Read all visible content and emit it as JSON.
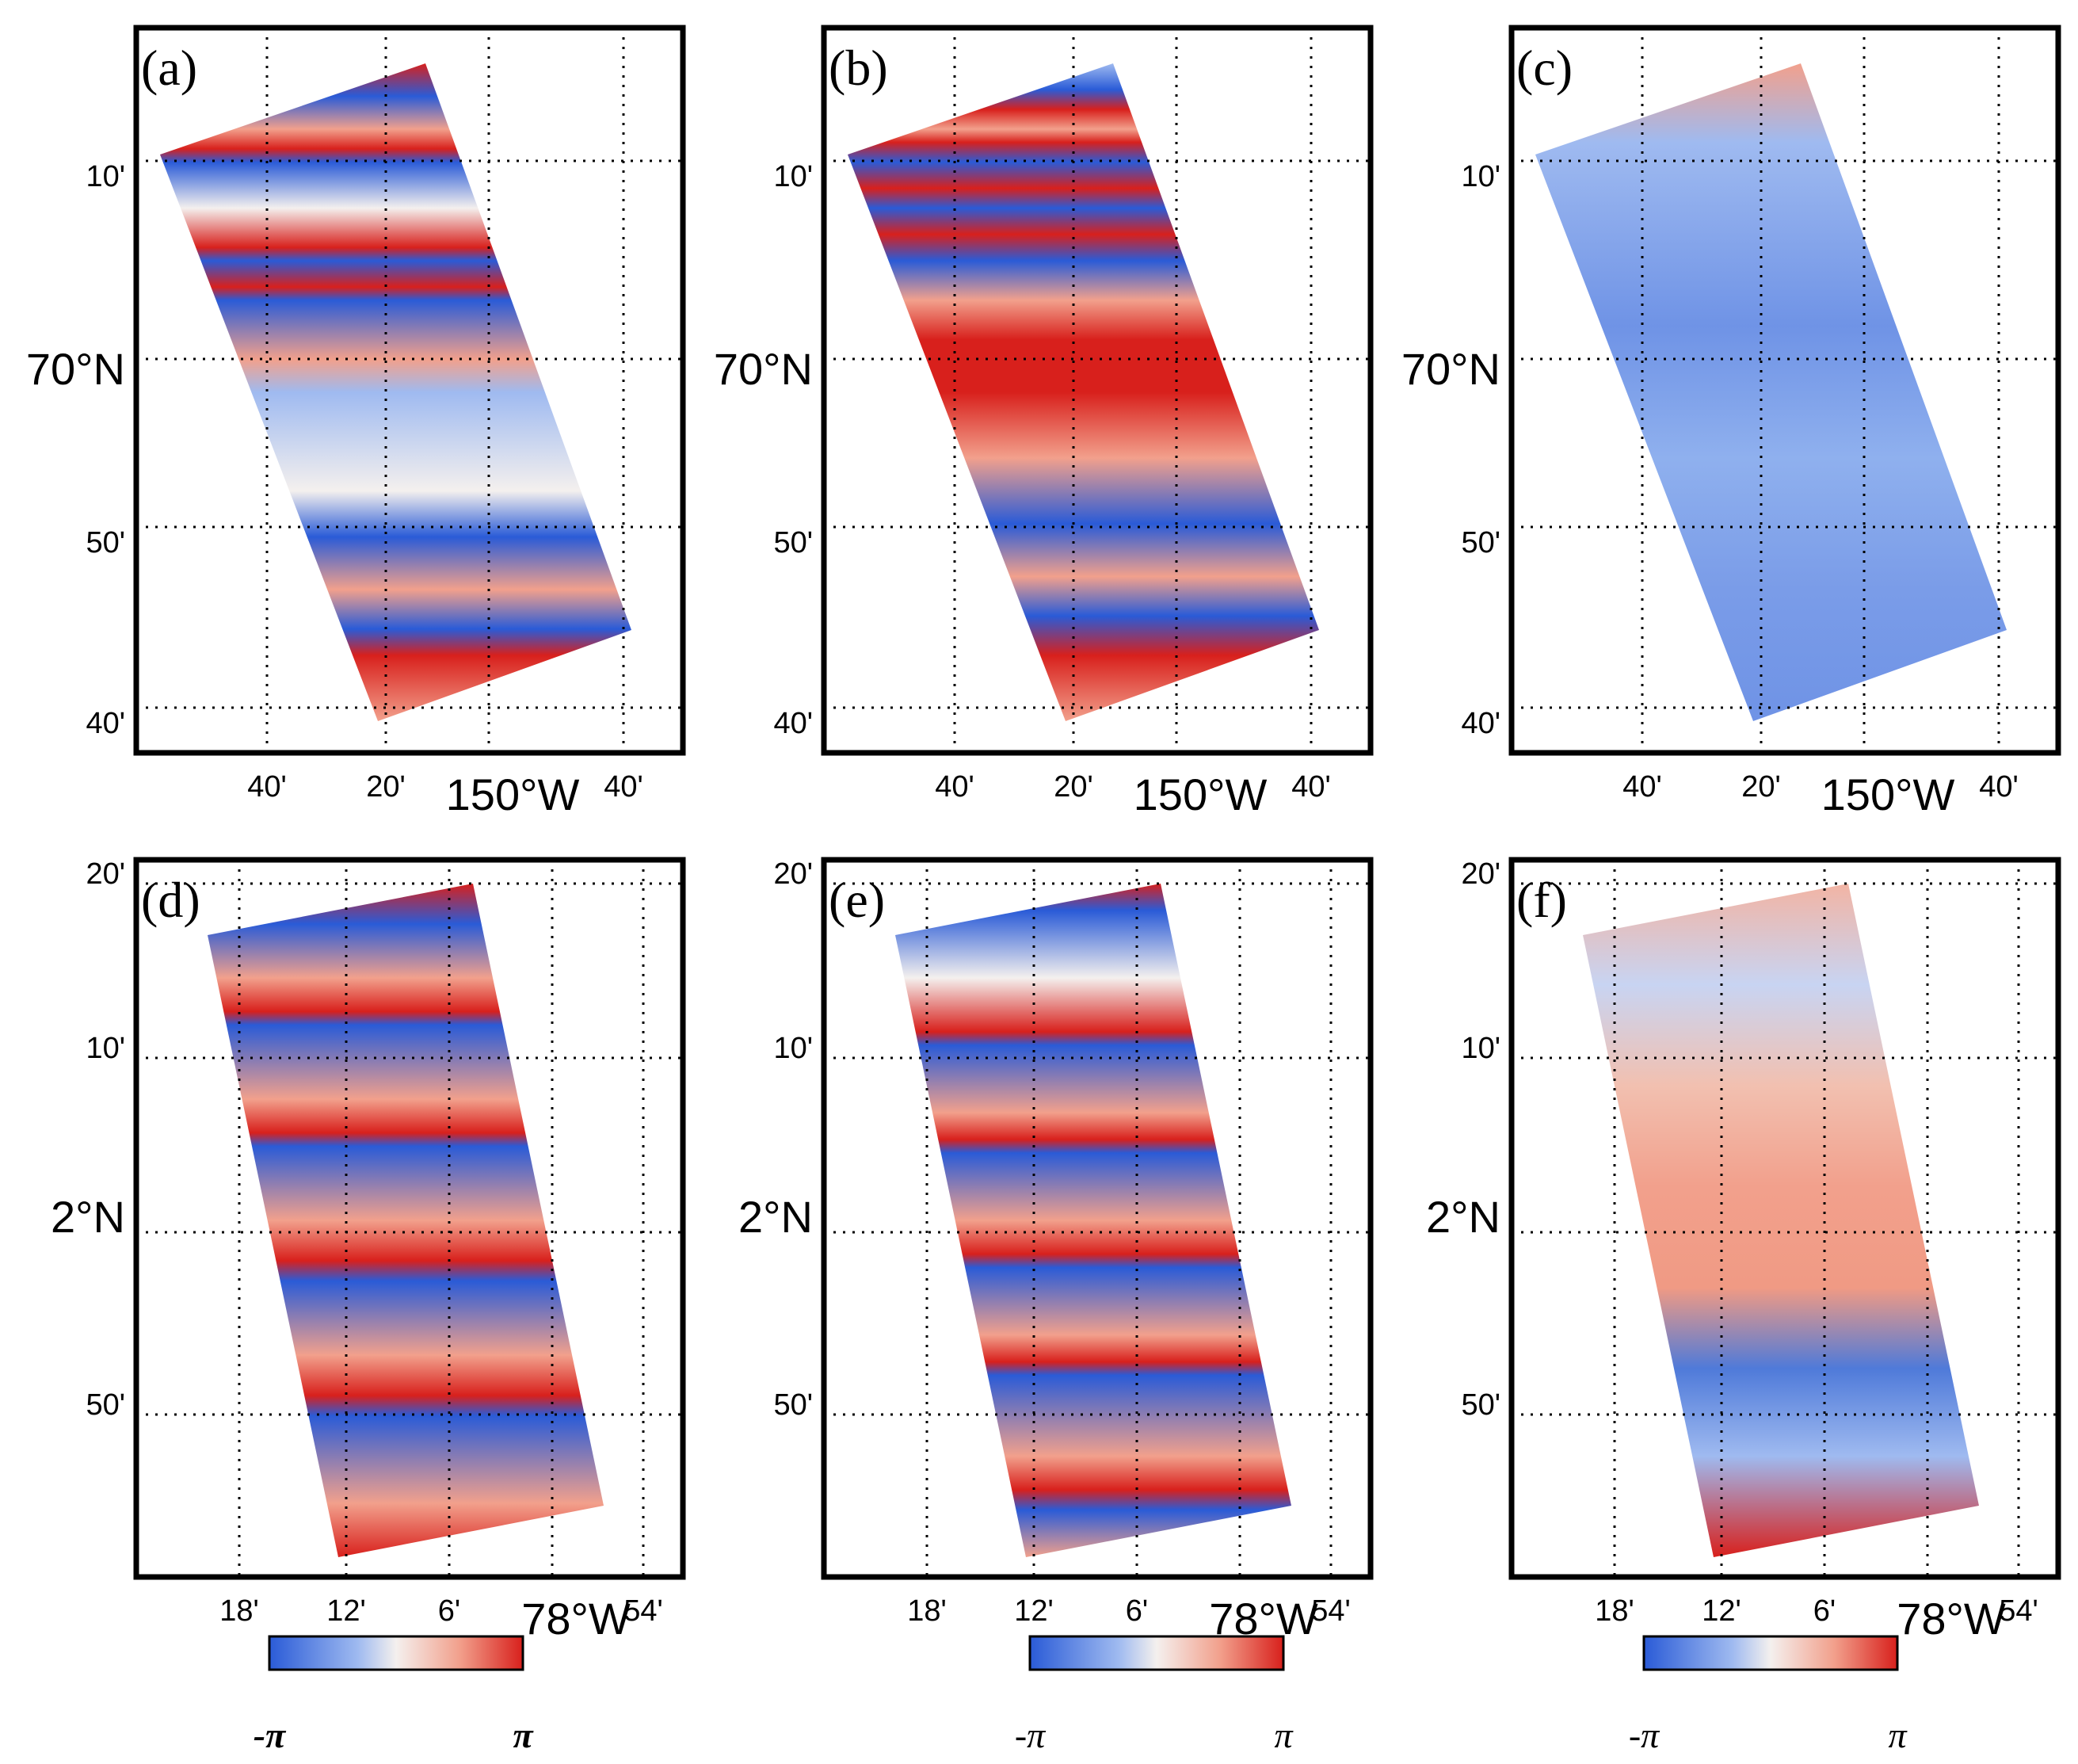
{
  "figure": {
    "panels": [
      {
        "id": "a",
        "label": "(a)",
        "row": "top",
        "pattern": "a"
      },
      {
        "id": "b",
        "label": "(b)",
        "row": "top",
        "pattern": "b"
      },
      {
        "id": "c",
        "label": "(c)",
        "row": "top",
        "pattern": "c"
      },
      {
        "id": "d",
        "label": "(d)",
        "row": "bottom",
        "pattern": "d"
      },
      {
        "id": "e",
        "label": "(e)",
        "row": "bottom",
        "pattern": "e"
      },
      {
        "id": "f",
        "label": "(f)",
        "row": "bottom",
        "pattern": "f"
      }
    ],
    "top_axes": {
      "y_ticks": [
        "10'",
        "70°N",
        "50'",
        "40'"
      ],
      "x_ticks": [
        "40'",
        "20'",
        "150°W",
        "40'"
      ]
    },
    "bottom_axes": {
      "y_ticks": [
        "20'",
        "10'",
        "2°N",
        "50'"
      ],
      "x_ticks": [
        "18'",
        "12'",
        "6'",
        "78°W",
        "54'"
      ]
    },
    "colorbars": [
      {
        "under": "d",
        "min_label": "-π",
        "max_label": "π",
        "bold": true
      },
      {
        "under": "e",
        "min_label": "-π",
        "max_label": "π",
        "bold": false
      },
      {
        "under": "f",
        "min_label": "-π",
        "max_label": "π",
        "bold": false
      }
    ],
    "colors": {
      "blue": "#2a5bd7",
      "light_blue": "#9fbaf0",
      "white": "#f4f0ee",
      "light_red": "#f2a08c",
      "red": "#d8201c",
      "frame": "#000000"
    }
  }
}
